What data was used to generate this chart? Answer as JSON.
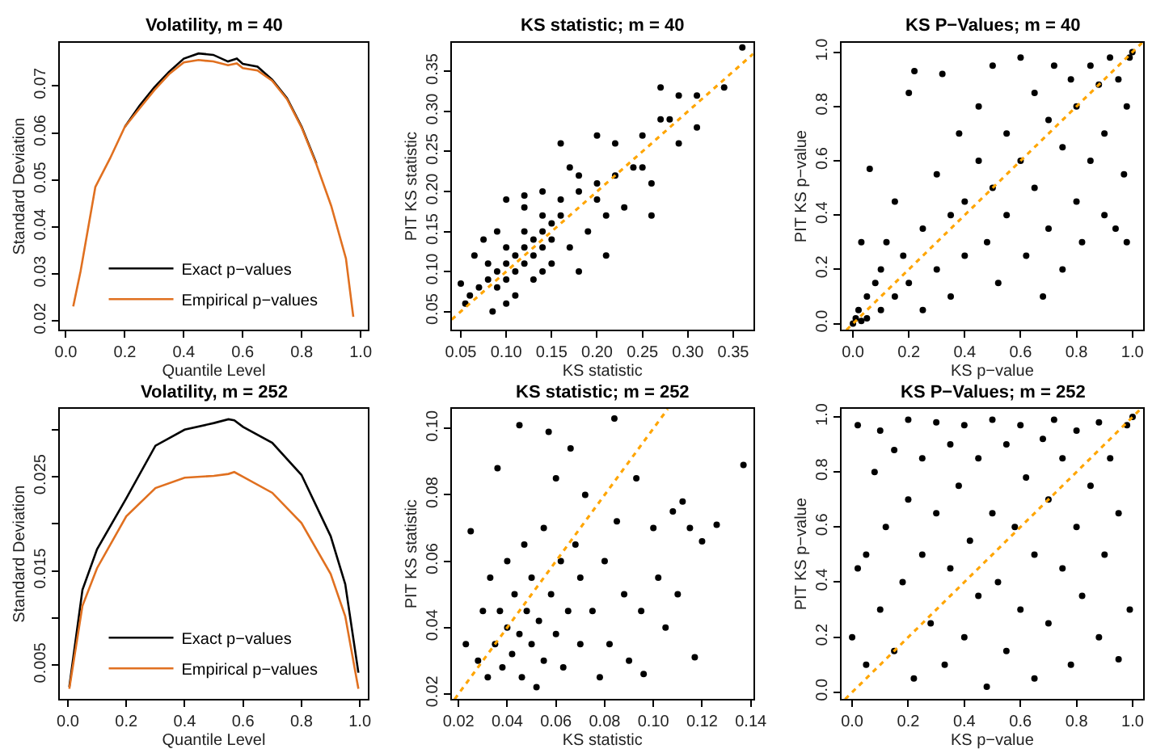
{
  "chart_data": [
    {
      "type": "line",
      "title": "Volatility, m = 40",
      "xlabel": "Quantile Level",
      "ylabel": "Standard Deviation",
      "legend": "bottom",
      "line_style": "solid",
      "x": [
        0.025,
        0.05,
        0.1,
        0.15,
        0.2,
        0.25,
        0.3,
        0.35,
        0.4,
        0.45,
        0.5,
        0.55,
        0.58,
        0.6,
        0.65,
        0.7,
        0.75,
        0.8,
        0.85,
        0.9,
        0.95,
        0.975
      ],
      "series": [
        {
          "name": "Exact p−values",
          "color": "#000000",
          "values": [
            null,
            null,
            null,
            null,
            0.0613,
            0.0658,
            0.0697,
            0.073,
            0.0758,
            0.0769,
            0.0766,
            0.0752,
            0.0758,
            0.0747,
            0.0741,
            0.0713,
            0.0674,
            0.0613,
            0.0535,
            null,
            null,
            null
          ]
        },
        {
          "name": "Empirical p−values",
          "color": "#e07020",
          "values": [
            0.0231,
            0.0306,
            0.0485,
            0.0546,
            0.0613,
            0.0652,
            0.0691,
            0.0725,
            0.075,
            0.0755,
            0.0752,
            0.0744,
            0.0748,
            0.0738,
            0.0733,
            0.0711,
            0.0672,
            0.0611,
            0.0533,
            0.0445,
            0.0333,
            0.0209
          ]
        }
      ],
      "xlim": [
        -0.021,
        1.025
      ],
      "ylim": [
        0.0181,
        0.0792
      ],
      "xticks": [
        {
          "value": 0,
          "label": "0.0"
        },
        0.2,
        0.4,
        0.6,
        0.8,
        {
          "value": 1,
          "label": "1.0"
        }
      ],
      "yticks": [
        0.02,
        0.03,
        0.04,
        0.05,
        0.06,
        0.07
      ]
    },
    {
      "type": "scatter",
      "title": "KS statistic; m = 40",
      "xlabel": "KS statistic",
      "ylabel": "PIT KS statistic",
      "series": [
        {
          "color": "#000000",
          "marker": "circle",
          "x": [
            0.07,
            0.08,
            0.09,
            0.1,
            0.11,
            0.12,
            0.13,
            0.14,
            0.15,
            0.16,
            0.09,
            0.1,
            0.11,
            0.12,
            0.13,
            0.14,
            0.15,
            0.08,
            0.1,
            0.12,
            0.14,
            0.16,
            0.18,
            0.11,
            0.13,
            0.15,
            0.17,
            0.19,
            0.06,
            0.065,
            0.075,
            0.09,
            0.1,
            0.12,
            0.16,
            0.17,
            0.18,
            0.2,
            0.2,
            0.21,
            0.22,
            0.22,
            0.23,
            0.24,
            0.25,
            0.26,
            0.26,
            0.27,
            0.27,
            0.28,
            0.29,
            0.29,
            0.31,
            0.31,
            0.34,
            0.36,
            0.21,
            0.18,
            0.085,
            0.055,
            0.1,
            0.14,
            0.05,
            0.12,
            0.14,
            0.25,
            0.2
          ],
          "values": [
            0.08,
            0.09,
            0.1,
            0.11,
            0.12,
            0.13,
            0.14,
            0.15,
            0.16,
            0.17,
            0.08,
            0.09,
            0.1,
            0.11,
            0.12,
            0.13,
            0.14,
            0.11,
            0.13,
            0.15,
            0.17,
            0.19,
            0.2,
            0.07,
            0.09,
            0.11,
            0.13,
            0.15,
            0.07,
            0.12,
            0.14,
            0.15,
            0.19,
            0.18,
            0.26,
            0.23,
            0.22,
            0.21,
            0.27,
            0.17,
            0.26,
            0.22,
            0.18,
            0.23,
            0.27,
            0.21,
            0.17,
            0.33,
            0.29,
            0.29,
            0.26,
            0.32,
            0.28,
            0.32,
            0.33,
            0.38,
            0.12,
            0.1,
            0.05,
            0.06,
            0.06,
            0.1,
            0.085,
            0.195,
            0.2,
            0.23,
            0.19
          ]
        },
        {
          "type": "line",
          "color": "#ffa500",
          "line_style": "dotted",
          "x": [
            0.04,
            0.372
          ],
          "values": [
            0.04,
            0.372
          ]
        }
      ],
      "xlim": [
        0.04,
        0.372
      ],
      "ylim": [
        0.027,
        0.386
      ],
      "xticks": [
        0.05,
        {
          "value": 0.1,
          "label": "0.10"
        },
        0.15,
        {
          "value": 0.2,
          "label": "0.20"
        },
        0.25,
        {
          "value": 0.3,
          "label": "0.30"
        },
        0.35
      ],
      "yticks": [
        0.05,
        {
          "value": 0.1,
          "label": "0.10"
        },
        0.15,
        {
          "value": 0.2,
          "label": "0.20"
        },
        0.25,
        {
          "value": 0.3,
          "label": "0.30"
        },
        0.35
      ]
    },
    {
      "type": "scatter",
      "title": "KS P−Values; m = 40",
      "xlabel": "KS p−value",
      "ylabel": "PIT KS p−value",
      "series": [
        {
          "color": "#000000",
          "marker": "circle",
          "x": [
            0.0,
            0.01,
            0.02,
            0.03,
            0.05,
            0.05,
            0.08,
            0.1,
            0.1,
            0.12,
            0.15,
            0.15,
            0.18,
            0.2,
            0.22,
            0.2,
            0.25,
            0.25,
            0.3,
            0.3,
            0.32,
            0.35,
            0.35,
            0.38,
            0.4,
            0.4,
            0.45,
            0.45,
            0.48,
            0.5,
            0.5,
            0.52,
            0.55,
            0.55,
            0.6,
            0.6,
            0.62,
            0.65,
            0.65,
            0.68,
            0.7,
            0.7,
            0.72,
            0.75,
            0.75,
            0.78,
            0.8,
            0.8,
            0.82,
            0.85,
            0.85,
            0.88,
            0.9,
            0.9,
            0.92,
            0.94,
            0.95,
            0.97,
            0.98,
            0.99,
            1.0,
            0.98,
            0.06,
            0.03
          ],
          "values": [
            0.0,
            0.02,
            0.05,
            0.01,
            0.1,
            0.02,
            0.15,
            0.05,
            0.2,
            0.3,
            0.1,
            0.45,
            0.25,
            0.85,
            0.93,
            0.15,
            0.35,
            0.05,
            0.55,
            0.2,
            0.92,
            0.4,
            0.1,
            0.7,
            0.45,
            0.25,
            0.8,
            0.6,
            0.3,
            0.5,
            0.95,
            0.15,
            0.7,
            0.4,
            0.98,
            0.6,
            0.25,
            0.85,
            0.5,
            0.1,
            0.75,
            0.35,
            0.95,
            0.65,
            0.2,
            0.9,
            0.8,
            0.45,
            0.3,
            0.95,
            0.6,
            0.88,
            0.7,
            0.4,
            0.98,
            0.35,
            0.9,
            0.55,
            0.8,
            0.98,
            1.0,
            0.3,
            0.57,
            0.3
          ]
        },
        {
          "type": "line",
          "color": "#ffa500",
          "line_style": "dotted",
          "x": [
            -0.023,
            1.035
          ],
          "values": [
            -0.023,
            1.035
          ]
        }
      ],
      "xlim": [
        -0.041,
        1.038
      ],
      "ylim": [
        -0.023,
        1.035
      ],
      "xticks": [
        {
          "value": 0,
          "label": "0.0"
        },
        0.2,
        0.4,
        0.6,
        0.8,
        {
          "value": 1,
          "label": "1.0"
        }
      ],
      "yticks": [
        {
          "value": 0,
          "label": "0.0"
        },
        0.2,
        0.4,
        0.6,
        0.8,
        {
          "value": 1,
          "label": "1.0"
        }
      ]
    },
    {
      "type": "line",
      "title": "Volatility, m = 252",
      "xlabel": "Quantile Level",
      "ylabel": "Standard Deviation",
      "legend": "bottom",
      "line_style": "solid",
      "x": [
        0.005,
        0.05,
        0.1,
        0.2,
        0.3,
        0.4,
        0.5,
        0.55,
        0.57,
        0.6,
        0.7,
        0.8,
        0.9,
        0.95,
        0.995
      ],
      "series": [
        {
          "name": "Exact p−values",
          "color": "#000000",
          "values": [
            0.0027,
            0.013,
            0.0173,
            0.0227,
            0.0283,
            0.03,
            0.0307,
            0.0311,
            0.031,
            0.0303,
            0.0286,
            0.0252,
            0.0187,
            0.0136,
            0.0042
          ]
        },
        {
          "name": "Empirical p−values",
          "color": "#e07020",
          "values": [
            0.0025,
            0.0113,
            0.0153,
            0.0208,
            0.0238,
            0.0249,
            0.0251,
            0.0253,
            0.0255,
            0.025,
            0.0233,
            0.0201,
            0.0147,
            0.0102,
            0.0025
          ]
        }
      ],
      "xlim": [
        -0.028,
        1.028
      ],
      "ylim": [
        0.0014,
        0.0322
      ],
      "xticks": [
        {
          "value": 0,
          "label": "0.0"
        },
        0.2,
        0.4,
        0.6,
        0.8,
        {
          "value": 1,
          "label": "1.0"
        }
      ],
      "yticks": [
        0.005,
        {
          "value": 0.01,
          "label": null
        },
        0.015,
        {
          "value": 0.02,
          "label": null
        },
        0.025,
        {
          "value": 0.03,
          "label": null
        }
      ]
    },
    {
      "type": "scatter",
      "title": "KS statistic; m = 252",
      "xlabel": "KS statistic",
      "ylabel": "PIT KS statistic",
      "series": [
        {
          "color": "#000000",
          "marker": "circle",
          "x": [
            0.023,
            0.025,
            0.028,
            0.03,
            0.032,
            0.033,
            0.035,
            0.036,
            0.037,
            0.038,
            0.04,
            0.04,
            0.042,
            0.043,
            0.045,
            0.045,
            0.046,
            0.047,
            0.048,
            0.05,
            0.05,
            0.052,
            0.053,
            0.055,
            0.055,
            0.057,
            0.058,
            0.06,
            0.06,
            0.062,
            0.063,
            0.065,
            0.066,
            0.068,
            0.07,
            0.07,
            0.072,
            0.075,
            0.078,
            0.08,
            0.082,
            0.084,
            0.085,
            0.088,
            0.09,
            0.093,
            0.095,
            0.096,
            0.1,
            0.102,
            0.105,
            0.108,
            0.11,
            0.112,
            0.115,
            0.117,
            0.12,
            0.126,
            0.137
          ],
          "values": [
            0.035,
            0.069,
            0.03,
            0.045,
            0.025,
            0.055,
            0.035,
            0.088,
            0.045,
            0.028,
            0.04,
            0.06,
            0.032,
            0.05,
            0.101,
            0.038,
            0.025,
            0.065,
            0.045,
            0.035,
            0.055,
            0.022,
            0.042,
            0.07,
            0.03,
            0.099,
            0.05,
            0.038,
            0.085,
            0.06,
            0.028,
            0.045,
            0.094,
            0.065,
            0.035,
            0.055,
            0.08,
            0.045,
            0.025,
            0.06,
            0.035,
            0.103,
            0.072,
            0.05,
            0.03,
            0.085,
            0.045,
            0.026,
            0.07,
            0.055,
            0.04,
            0.075,
            0.05,
            0.078,
            0.07,
            0.031,
            0.066,
            0.071,
            0.089
          ]
        },
        {
          "type": "line",
          "color": "#ffa500",
          "line_style": "dotted",
          "x": [
            0.0184,
            0.1059
          ],
          "values": [
            0.0184,
            0.1059
          ]
        }
      ],
      "xlim": [
        0.0172,
        0.141
      ],
      "ylim": [
        0.0184,
        0.1059
      ],
      "xticks": [
        0.02,
        0.04,
        0.06,
        0.08,
        {
          "value": 0.1,
          "label": "0.10"
        },
        0.12,
        0.14
      ],
      "yticks": [
        0.02,
        0.04,
        0.06,
        0.08,
        {
          "value": 0.1,
          "label": "0.10"
        }
      ]
    },
    {
      "type": "scatter",
      "title": "KS P−Values; m = 252",
      "xlabel": "KS p−value",
      "ylabel": "PIT KS p−value",
      "series": [
        {
          "color": "#000000",
          "marker": "circle",
          "x": [
            0.02,
            0.05,
            0.05,
            0.08,
            0.1,
            0.1,
            0.12,
            0.15,
            0.15,
            0.18,
            0.2,
            0.2,
            0.22,
            0.25,
            0.25,
            0.28,
            0.3,
            0.3,
            0.33,
            0.35,
            0.35,
            0.38,
            0.4,
            0.4,
            0.42,
            0.45,
            0.45,
            0.48,
            0.5,
            0.5,
            0.52,
            0.55,
            0.55,
            0.58,
            0.6,
            0.6,
            0.62,
            0.65,
            0.65,
            0.68,
            0.7,
            0.7,
            0.72,
            0.75,
            0.75,
            0.78,
            0.8,
            0.8,
            0.82,
            0.85,
            0.88,
            0.88,
            0.9,
            0.92,
            0.95,
            0.95,
            0.98,
            0.99,
            1.0,
            0.0,
            0.02
          ],
          "values": [
            0.97,
            0.1,
            0.5,
            0.8,
            0.3,
            0.95,
            0.6,
            0.15,
            0.88,
            0.4,
            0.99,
            0.7,
            0.05,
            0.5,
            0.85,
            0.25,
            0.98,
            0.65,
            0.1,
            0.45,
            0.9,
            0.75,
            0.2,
            0.97,
            0.55,
            0.35,
            0.85,
            0.02,
            0.65,
            0.99,
            0.4,
            0.9,
            0.15,
            0.6,
            0.97,
            0.3,
            0.78,
            0.5,
            0.05,
            0.92,
            0.25,
            0.7,
            0.99,
            0.45,
            0.85,
            0.1,
            0.6,
            0.95,
            0.35,
            0.75,
            0.2,
            0.98,
            0.5,
            0.85,
            0.12,
            0.65,
            0.97,
            0.3,
            1.0,
            0.2,
            0.45
          ]
        },
        {
          "type": "line",
          "color": "#ffa500",
          "line_style": "dotted",
          "x": [
            -0.025,
            1.029
          ],
          "values": [
            -0.025,
            1.029
          ]
        }
      ],
      "xlim": [
        -0.038,
        1.037
      ],
      "ylim": [
        -0.025,
        1.029
      ],
      "xticks": [
        {
          "value": 0,
          "label": "0.0"
        },
        0.2,
        0.4,
        0.6,
        0.8,
        {
          "value": 1,
          "label": "1.0"
        }
      ],
      "yticks": [
        {
          "value": 0,
          "label": "0.0"
        },
        0.2,
        0.4,
        0.6,
        0.8,
        {
          "value": 1,
          "label": "1.0"
        }
      ]
    }
  ]
}
